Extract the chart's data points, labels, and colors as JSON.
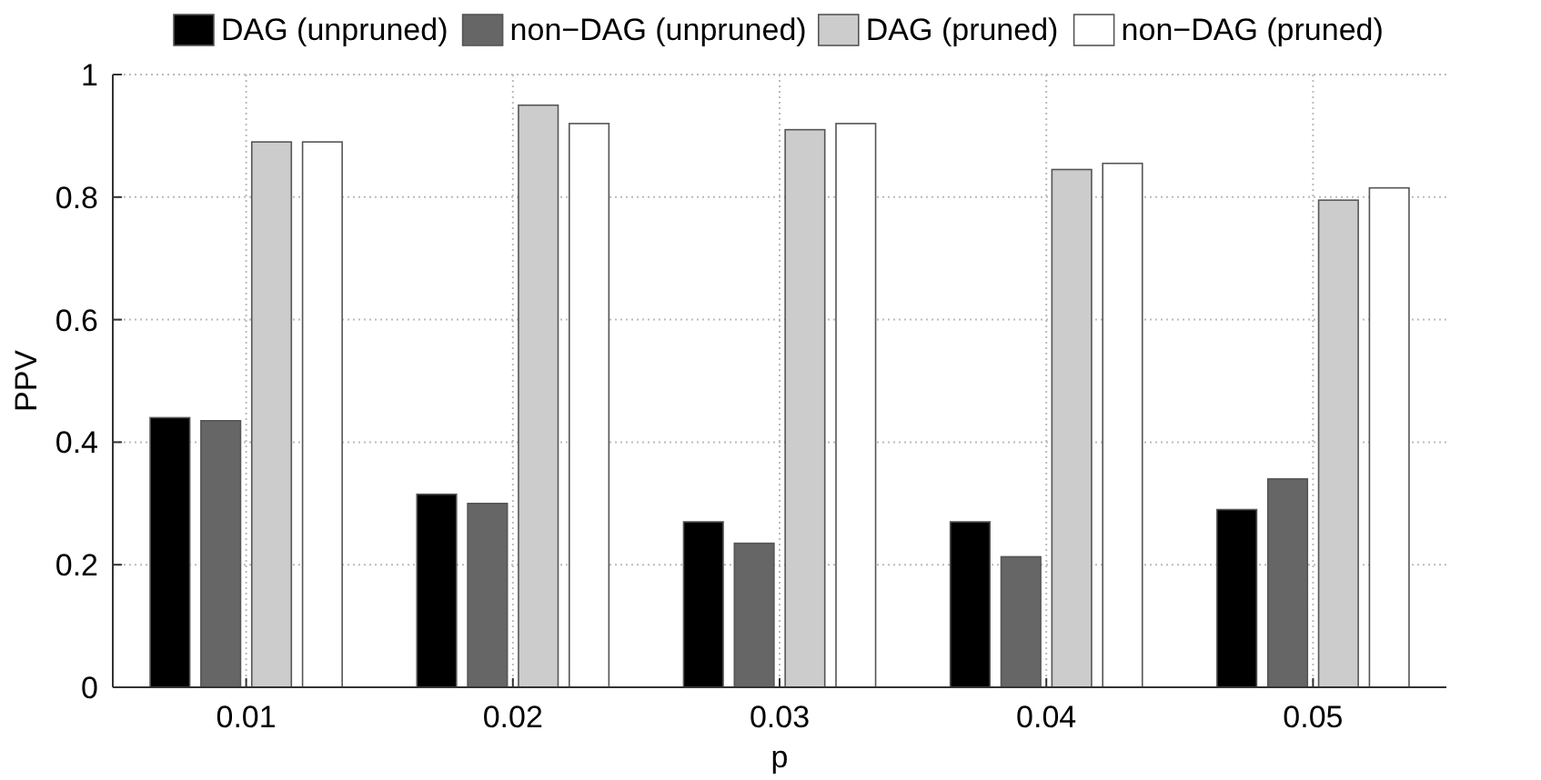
{
  "chart_data": {
    "type": "bar",
    "xlabel": "p",
    "ylabel": "PPV",
    "categories": [
      "0.01",
      "0.02",
      "0.03",
      "0.04",
      "0.05"
    ],
    "series": [
      {
        "name": "DAG (unpruned)",
        "color": "#000000",
        "values": [
          0.44,
          0.315,
          0.27,
          0.27,
          0.29
        ]
      },
      {
        "name": "non−DAG (unpruned)",
        "color": "#666666",
        "values": [
          0.435,
          0.3,
          0.235,
          0.213,
          0.34
        ]
      },
      {
        "name": "DAG (pruned)",
        "color": "#cccccc",
        "values": [
          0.89,
          0.95,
          0.91,
          0.845,
          0.795
        ]
      },
      {
        "name": "non−DAG (pruned)",
        "color": "#ffffff",
        "values": [
          0.89,
          0.92,
          0.92,
          0.855,
          0.815
        ]
      }
    ],
    "ylim": [
      0,
      1
    ],
    "yticks": [
      0,
      0.2,
      0.4,
      0.6,
      0.8,
      1
    ],
    "grid": true,
    "legend": "top"
  }
}
